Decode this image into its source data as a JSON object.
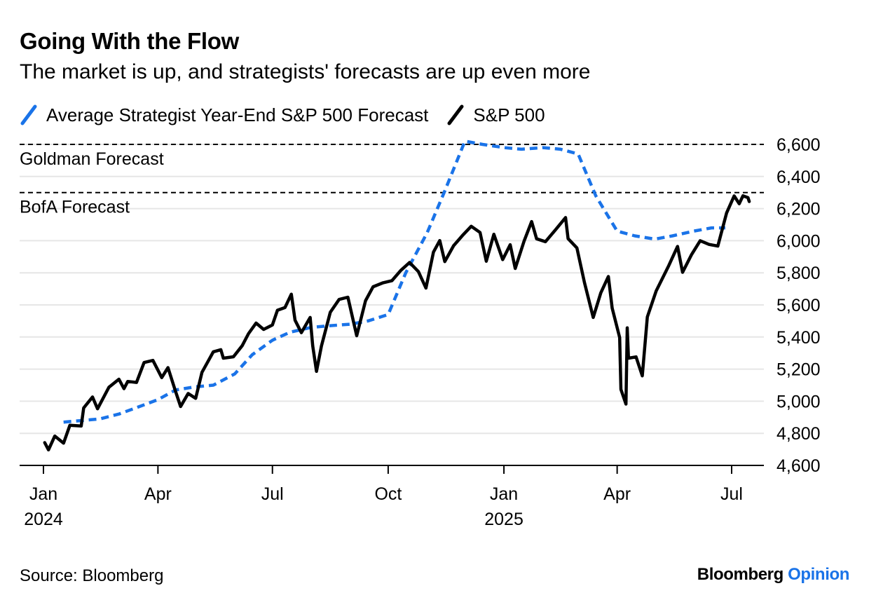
{
  "header": {
    "title": "Going With the Flow",
    "subtitle": "The market is up, and strategists' forecasts are up even more"
  },
  "footer": {
    "source": "Source: Bloomberg",
    "brand": "Bloomberg",
    "brand_suffix": "Opinion"
  },
  "colors": {
    "forecast": "#1a73e8",
    "sp500": "#000000",
    "reference": "#000000",
    "grid": "#e6e6e6",
    "brand_accent": "#1a73e8"
  },
  "chart_data": {
    "type": "line",
    "title": "Going With the Flow",
    "subtitle": "The market is up, and strategists' forecasts are up even more",
    "y_axis": {
      "side": "right",
      "ylim": [
        4600,
        6600
      ],
      "ticks": [
        4600,
        4800,
        5000,
        5200,
        5400,
        5600,
        5800,
        6000,
        6200,
        6400,
        6600
      ],
      "tick_labels": [
        "4,600",
        "4,800",
        "5,000",
        "5,200",
        "5,400",
        "5,600",
        "5,800",
        "6,000",
        "6,200",
        "6,400",
        "6,600"
      ]
    },
    "x_axis": {
      "xlim": [
        "2024-01-01",
        "2025-07-20"
      ],
      "ticks": [
        {
          "date": "2024-01-01",
          "label": "Jan",
          "year": "2024"
        },
        {
          "date": "2024-04-01",
          "label": "Apr",
          "year": ""
        },
        {
          "date": "2024-07-01",
          "label": "Jul",
          "year": ""
        },
        {
          "date": "2024-10-01",
          "label": "Oct",
          "year": ""
        },
        {
          "date": "2025-01-01",
          "label": "Jan",
          "year": "2025"
        },
        {
          "date": "2025-04-01",
          "label": "Apr",
          "year": ""
        },
        {
          "date": "2025-07-01",
          "label": "Jul",
          "year": ""
        }
      ]
    },
    "grid": true,
    "legend_position": "top-left",
    "reference_lines": [
      {
        "label": "Goldman Forecast",
        "value": 6600,
        "style": "dashed"
      },
      {
        "label": "BofA Forecast",
        "value": 6300,
        "style": "dashed"
      }
    ],
    "series": [
      {
        "name": "Average Strategist Year-End S&P 500 Forecast",
        "style": "dashed",
        "color": "#1a73e8",
        "points": [
          [
            "2024-01-17",
            4870
          ],
          [
            "2024-02-01",
            4880
          ],
          [
            "2024-02-15",
            4890
          ],
          [
            "2024-03-01",
            4920
          ],
          [
            "2024-03-15",
            4960
          ],
          [
            "2024-04-01",
            5010
          ],
          [
            "2024-04-15",
            5070
          ],
          [
            "2024-05-01",
            5090
          ],
          [
            "2024-05-15",
            5100
          ],
          [
            "2024-06-01",
            5170
          ],
          [
            "2024-06-15",
            5290
          ],
          [
            "2024-07-01",
            5380
          ],
          [
            "2024-07-15",
            5430
          ],
          [
            "2024-08-01",
            5460
          ],
          [
            "2024-08-15",
            5470
          ],
          [
            "2024-09-01",
            5480
          ],
          [
            "2024-09-15",
            5500
          ],
          [
            "2024-10-01",
            5540
          ],
          [
            "2024-10-15",
            5800
          ],
          [
            "2024-11-01",
            6050
          ],
          [
            "2024-11-15",
            6310
          ],
          [
            "2024-12-01",
            6620
          ],
          [
            "2024-12-15",
            6600
          ],
          [
            "2025-01-01",
            6580
          ],
          [
            "2025-01-15",
            6570
          ],
          [
            "2025-02-01",
            6580
          ],
          [
            "2025-02-15",
            6570
          ],
          [
            "2025-03-01",
            6540
          ],
          [
            "2025-03-15",
            6280
          ],
          [
            "2025-04-01",
            6060
          ],
          [
            "2025-04-15",
            6030
          ],
          [
            "2025-05-01",
            6010
          ],
          [
            "2025-05-15",
            6030
          ],
          [
            "2025-06-01",
            6060
          ],
          [
            "2025-06-15",
            6080
          ],
          [
            "2025-06-26",
            6080
          ]
        ]
      },
      {
        "name": "S&P 500",
        "style": "solid",
        "color": "#000000",
        "points": [
          [
            "2024-01-02",
            4742
          ],
          [
            "2024-01-05",
            4697
          ],
          [
            "2024-01-10",
            4783
          ],
          [
            "2024-01-17",
            4739
          ],
          [
            "2024-01-22",
            4850
          ],
          [
            "2024-01-31",
            4846
          ],
          [
            "2024-02-02",
            4958
          ],
          [
            "2024-02-09",
            5026
          ],
          [
            "2024-02-13",
            4953
          ],
          [
            "2024-02-22",
            5087
          ],
          [
            "2024-03-01",
            5137
          ],
          [
            "2024-03-05",
            5078
          ],
          [
            "2024-03-08",
            5123
          ],
          [
            "2024-03-15",
            5117
          ],
          [
            "2024-03-21",
            5241
          ],
          [
            "2024-03-28",
            5254
          ],
          [
            "2024-04-04",
            5147
          ],
          [
            "2024-04-09",
            5209
          ],
          [
            "2024-04-15",
            5061
          ],
          [
            "2024-04-19",
            4967
          ],
          [
            "2024-04-25",
            5048
          ],
          [
            "2024-05-01",
            5018
          ],
          [
            "2024-05-06",
            5180
          ],
          [
            "2024-05-15",
            5308
          ],
          [
            "2024-05-21",
            5321
          ],
          [
            "2024-05-23",
            5268
          ],
          [
            "2024-05-31",
            5277
          ],
          [
            "2024-06-07",
            5346
          ],
          [
            "2024-06-12",
            5421
          ],
          [
            "2024-06-18",
            5487
          ],
          [
            "2024-06-24",
            5447
          ],
          [
            "2024-07-01",
            5475
          ],
          [
            "2024-07-05",
            5567
          ],
          [
            "2024-07-11",
            5584
          ],
          [
            "2024-07-16",
            5667
          ],
          [
            "2024-07-19",
            5505
          ],
          [
            "2024-07-24",
            5427
          ],
          [
            "2024-07-31",
            5522
          ],
          [
            "2024-08-02",
            5346
          ],
          [
            "2024-08-05",
            5186
          ],
          [
            "2024-08-09",
            5344
          ],
          [
            "2024-08-16",
            5554
          ],
          [
            "2024-08-23",
            5634
          ],
          [
            "2024-08-30",
            5648
          ],
          [
            "2024-09-06",
            5408
          ],
          [
            "2024-09-13",
            5626
          ],
          [
            "2024-09-19",
            5713
          ],
          [
            "2024-09-27",
            5738
          ],
          [
            "2024-10-04",
            5751
          ],
          [
            "2024-10-11",
            5815
          ],
          [
            "2024-10-18",
            5864
          ],
          [
            "2024-10-25",
            5808
          ],
          [
            "2024-10-31",
            5705
          ],
          [
            "2024-11-06",
            5929
          ],
          [
            "2024-11-11",
            6001
          ],
          [
            "2024-11-15",
            5870
          ],
          [
            "2024-11-22",
            5969
          ],
          [
            "2024-11-29",
            6032
          ],
          [
            "2024-12-06",
            6090
          ],
          [
            "2024-12-13",
            6051
          ],
          [
            "2024-12-18",
            5872
          ],
          [
            "2024-12-24",
            6040
          ],
          [
            "2024-12-31",
            5882
          ],
          [
            "2025-01-06",
            5975
          ],
          [
            "2025-01-10",
            5827
          ],
          [
            "2025-01-17",
            5997
          ],
          [
            "2025-01-23",
            6119
          ],
          [
            "2025-01-27",
            6012
          ],
          [
            "2025-02-03",
            5994
          ],
          [
            "2025-02-11",
            6068
          ],
          [
            "2025-02-19",
            6144
          ],
          [
            "2025-02-21",
            6013
          ],
          [
            "2025-02-28",
            5955
          ],
          [
            "2025-03-06",
            5739
          ],
          [
            "2025-03-13",
            5522
          ],
          [
            "2025-03-19",
            5675
          ],
          [
            "2025-03-25",
            5777
          ],
          [
            "2025-03-28",
            5581
          ],
          [
            "2025-04-03",
            5397
          ],
          [
            "2025-04-04",
            5074
          ],
          [
            "2025-04-08",
            4982
          ],
          [
            "2025-04-09",
            5457
          ],
          [
            "2025-04-10",
            5268
          ],
          [
            "2025-04-16",
            5276
          ],
          [
            "2025-04-21",
            5158
          ],
          [
            "2025-04-25",
            5525
          ],
          [
            "2025-05-02",
            5687
          ],
          [
            "2025-05-12",
            5844
          ],
          [
            "2025-05-19",
            5964
          ],
          [
            "2025-05-23",
            5803
          ],
          [
            "2025-05-30",
            5912
          ],
          [
            "2025-06-06",
            6000
          ],
          [
            "2025-06-13",
            5977
          ],
          [
            "2025-06-20",
            5967
          ],
          [
            "2025-06-27",
            6173
          ],
          [
            "2025-07-03",
            6279
          ],
          [
            "2025-07-07",
            6230
          ],
          [
            "2025-07-10",
            6280
          ],
          [
            "2025-07-14",
            6268
          ],
          [
            "2025-07-15",
            6244
          ]
        ]
      }
    ]
  }
}
